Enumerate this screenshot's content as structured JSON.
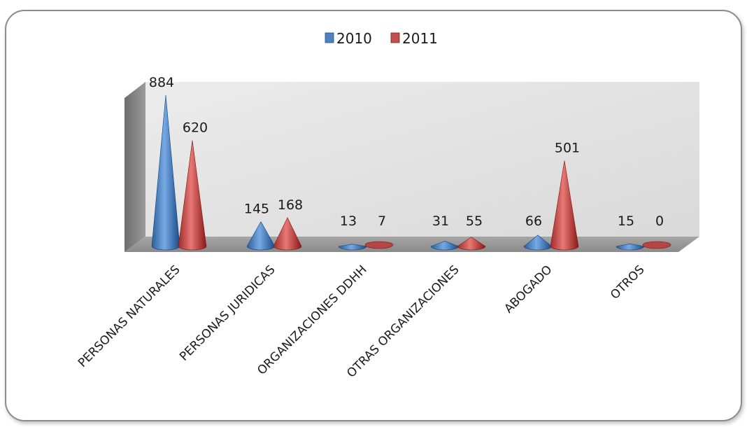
{
  "chart_data": {
    "type": "bar",
    "subtype": "3d-cone",
    "title": "",
    "xlabel": "",
    "ylabel": "",
    "ylim": [
      0,
      884
    ],
    "grid": false,
    "legend_position": "top",
    "categories": [
      "PERSONAS NATURALES",
      "PERSONAS JURIDICAS",
      "ORGANIZACIONES DDHH",
      "OTRAS ORGANIZACIONES",
      "ABOGADO",
      "OTROS"
    ],
    "series": [
      {
        "name": "2010",
        "color": "#4f81bd",
        "values": [
          884,
          145,
          13,
          31,
          66,
          15
        ]
      },
      {
        "name": "2011",
        "color": "#c0504d",
        "values": [
          620,
          168,
          7,
          55,
          501,
          0
        ]
      }
    ]
  }
}
